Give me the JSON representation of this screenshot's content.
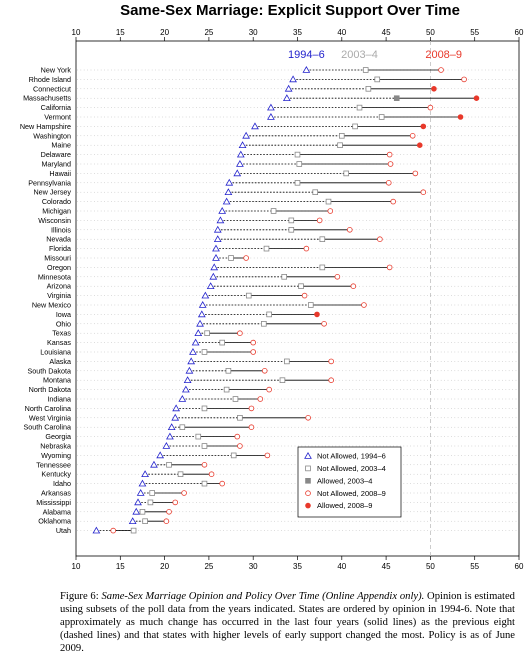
{
  "chart_data": {
    "type": "scatter",
    "title": "Same-Sex Marriage: Explicit Support Over Time",
    "xlim": [
      10,
      60
    ],
    "xticks": [
      10,
      15,
      20,
      25,
      30,
      35,
      40,
      45,
      50,
      55,
      60
    ],
    "reference_line_x": 50,
    "period_labels": [
      {
        "text": "1994–6",
        "color": "#2222cc",
        "x": 36
      },
      {
        "text": "2003–4",
        "color": "#aaaaaa",
        "x": 42
      },
      {
        "text": "2008–9",
        "color": "#e8392b",
        "x": 51.5
      }
    ],
    "colors": {
      "blue": "#2222cc",
      "gray": "#888888",
      "red": "#e8392b"
    },
    "states": [
      {
        "name": "New York",
        "v1": 36,
        "v2": 42.7,
        "v3": 51.2,
        "allowed2": false,
        "allowed3": false
      },
      {
        "name": "Rhode Island",
        "v1": 34.5,
        "v2": 44,
        "v3": 53.8,
        "allowed2": false,
        "allowed3": false
      },
      {
        "name": "Connecticut",
        "v1": 34,
        "v2": 43,
        "v3": 50.4,
        "allowed2": false,
        "allowed3": true
      },
      {
        "name": "Massachusetts",
        "v1": 33.8,
        "v2": 46.2,
        "v3": 55.2,
        "allowed2": true,
        "allowed3": true
      },
      {
        "name": "California",
        "v1": 32,
        "v2": 42,
        "v3": 50,
        "allowed2": false,
        "allowed3": false
      },
      {
        "name": "Vermont",
        "v1": 32,
        "v2": 44.5,
        "v3": 53.4,
        "allowed2": false,
        "allowed3": true
      },
      {
        "name": "New Hampshire",
        "v1": 30.2,
        "v2": 41.5,
        "v3": 49.2,
        "allowed2": false,
        "allowed3": true
      },
      {
        "name": "Washington",
        "v1": 29.2,
        "v2": 40,
        "v3": 48,
        "allowed2": false,
        "allowed3": false
      },
      {
        "name": "Maine",
        "v1": 28.8,
        "v2": 39.8,
        "v3": 48.8,
        "allowed2": false,
        "allowed3": true
      },
      {
        "name": "Delaware",
        "v1": 28.6,
        "v2": 35,
        "v3": 45.4,
        "allowed2": false,
        "allowed3": false
      },
      {
        "name": "Maryland",
        "v1": 28.5,
        "v2": 35.2,
        "v3": 45.5,
        "allowed2": false,
        "allowed3": false
      },
      {
        "name": "Hawaii",
        "v1": 28.2,
        "v2": 40.5,
        "v3": 48.3,
        "allowed2": false,
        "allowed3": false
      },
      {
        "name": "Pennsylvania",
        "v1": 27.3,
        "v2": 35,
        "v3": 45.3,
        "allowed2": false,
        "allowed3": false
      },
      {
        "name": "New Jersey",
        "v1": 27.2,
        "v2": 37,
        "v3": 49.2,
        "allowed2": false,
        "allowed3": false
      },
      {
        "name": "Colorado",
        "v1": 27,
        "v2": 38.5,
        "v3": 45.8,
        "allowed2": false,
        "allowed3": false
      },
      {
        "name": "Michigan",
        "v1": 26.5,
        "v2": 32.3,
        "v3": 38.7,
        "allowed2": false,
        "allowed3": false
      },
      {
        "name": "Wisconsin",
        "v1": 26.3,
        "v2": 34.3,
        "v3": 37.5,
        "allowed2": false,
        "allowed3": false
      },
      {
        "name": "Illinois",
        "v1": 26,
        "v2": 34.3,
        "v3": 40.9,
        "allowed2": false,
        "allowed3": false
      },
      {
        "name": "Nevada",
        "v1": 26,
        "v2": 37.8,
        "v3": 44.3,
        "allowed2": false,
        "allowed3": false
      },
      {
        "name": "Florida",
        "v1": 25.8,
        "v2": 31.5,
        "v3": 36,
        "allowed2": false,
        "allowed3": false
      },
      {
        "name": "Missouri",
        "v1": 25.8,
        "v2": 27.5,
        "v3": 29.2,
        "allowed2": false,
        "allowed3": false
      },
      {
        "name": "Oregon",
        "v1": 25.6,
        "v2": 37.8,
        "v3": 45.4,
        "allowed2": false,
        "allowed3": false
      },
      {
        "name": "Minnesota",
        "v1": 25.5,
        "v2": 33.5,
        "v3": 39.5,
        "allowed2": false,
        "allowed3": false
      },
      {
        "name": "Arizona",
        "v1": 25.2,
        "v2": 35.4,
        "v3": 41.3,
        "allowed2": false,
        "allowed3": false
      },
      {
        "name": "Virginia",
        "v1": 24.6,
        "v2": 29.5,
        "v3": 35.8,
        "allowed2": false,
        "allowed3": false
      },
      {
        "name": "New Mexico",
        "v1": 24.3,
        "v2": 36.5,
        "v3": 42.5,
        "allowed2": false,
        "allowed3": false
      },
      {
        "name": "Iowa",
        "v1": 24.2,
        "v2": 31.8,
        "v3": 37.2,
        "allowed2": false,
        "allowed3": true
      },
      {
        "name": "Ohio",
        "v1": 24,
        "v2": 31.2,
        "v3": 38,
        "allowed2": false,
        "allowed3": false
      },
      {
        "name": "Texas",
        "v1": 23.8,
        "v2": 24.8,
        "v3": 28.5,
        "allowed2": false,
        "allowed3": false
      },
      {
        "name": "Kansas",
        "v1": 23.5,
        "v2": 26.5,
        "v3": 30,
        "allowed2": false,
        "allowed3": false
      },
      {
        "name": "Louisiana",
        "v1": 23.2,
        "v2": 24.5,
        "v3": 30,
        "allowed2": false,
        "allowed3": false
      },
      {
        "name": "Alaska",
        "v1": 23,
        "v2": 33.8,
        "v3": 38.8,
        "allowed2": false,
        "allowed3": false
      },
      {
        "name": "South Dakota",
        "v1": 22.8,
        "v2": 27.2,
        "v3": 31.3,
        "allowed2": false,
        "allowed3": false
      },
      {
        "name": "Montana",
        "v1": 22.6,
        "v2": 33.3,
        "v3": 38.8,
        "allowed2": false,
        "allowed3": false
      },
      {
        "name": "North Dakota",
        "v1": 22.4,
        "v2": 27,
        "v3": 31.8,
        "allowed2": false,
        "allowed3": false
      },
      {
        "name": "Indiana",
        "v1": 22,
        "v2": 28,
        "v3": 30.8,
        "allowed2": false,
        "allowed3": false
      },
      {
        "name": "North Carolina",
        "v1": 21.3,
        "v2": 24.5,
        "v3": 29.8,
        "allowed2": false,
        "allowed3": false
      },
      {
        "name": "West Virginia",
        "v1": 21.2,
        "v2": 28.5,
        "v3": 36.2,
        "allowed2": false,
        "allowed3": false
      },
      {
        "name": "South Carolina",
        "v1": 20.8,
        "v2": 22,
        "v3": 29.8,
        "allowed2": false,
        "allowed3": false
      },
      {
        "name": "Georgia",
        "v1": 20.6,
        "v2": 23.8,
        "v3": 28.2,
        "allowed2": false,
        "allowed3": false
      },
      {
        "name": "Nebraska",
        "v1": 20.2,
        "v2": 24.5,
        "v3": 28.5,
        "allowed2": false,
        "allowed3": false
      },
      {
        "name": "Wyoming",
        "v1": 19.5,
        "v2": 27.8,
        "v3": 31.6,
        "allowed2": false,
        "allowed3": false
      },
      {
        "name": "Tennessee",
        "v1": 18.8,
        "v2": 20.5,
        "v3": 24.5,
        "allowed2": false,
        "allowed3": false
      },
      {
        "name": "Kentucky",
        "v1": 17.8,
        "v2": 21.8,
        "v3": 25.3,
        "allowed2": false,
        "allowed3": false
      },
      {
        "name": "Idaho",
        "v1": 17.5,
        "v2": 24.5,
        "v3": 26.5,
        "allowed2": false,
        "allowed3": false
      },
      {
        "name": "Arkansas",
        "v1": 17.3,
        "v2": 18.6,
        "v3": 22.2,
        "allowed2": false,
        "allowed3": false
      },
      {
        "name": "Mississippi",
        "v1": 17,
        "v2": 18.4,
        "v3": 21.2,
        "allowed2": false,
        "allowed3": false
      },
      {
        "name": "Alabama",
        "v1": 16.8,
        "v2": 17.5,
        "v3": 20.5,
        "allowed2": false,
        "allowed3": false
      },
      {
        "name": "Oklahoma",
        "v1": 16.4,
        "v2": 17.8,
        "v3": 20.2,
        "allowed2": false,
        "allowed3": false
      },
      {
        "name": "Utah",
        "v1": 12.3,
        "v2": 16.5,
        "v3": 14.2,
        "allowed2": false,
        "allowed3": false
      }
    ],
    "legend": {
      "placement": "bottom-right",
      "entries": [
        {
          "label": "Not Allowed, 1994–6",
          "symbol": "triangle",
          "color": "#2222cc"
        },
        {
          "label": "Not Allowed, 2003–4",
          "symbol": "square-open",
          "color": "#888888"
        },
        {
          "label": "Allowed, 2003–4",
          "symbol": "square-filled",
          "color": "#888888"
        },
        {
          "label": "Not Allowed, 2008–9",
          "symbol": "circle-open",
          "color": "#e8392b"
        },
        {
          "label": "Allowed, 2008–9",
          "symbol": "circle-filled",
          "color": "#e8392b"
        }
      ]
    }
  },
  "caption": {
    "figure_label": "Figure 6:",
    "lead": "Same-Sex Marriage Opinion and Policy Over Time (Online Appendix only).",
    "text": "Opinion is estimated using subsets of the poll data from the years indicated. States are ordered by opinion in 1994-6. Note that approximately as much change has occurred in the last four years (solid lines) as the previous eight (dashed lines) and that states with higher levels of early support changed the most. Policy is as of June 2009."
  }
}
